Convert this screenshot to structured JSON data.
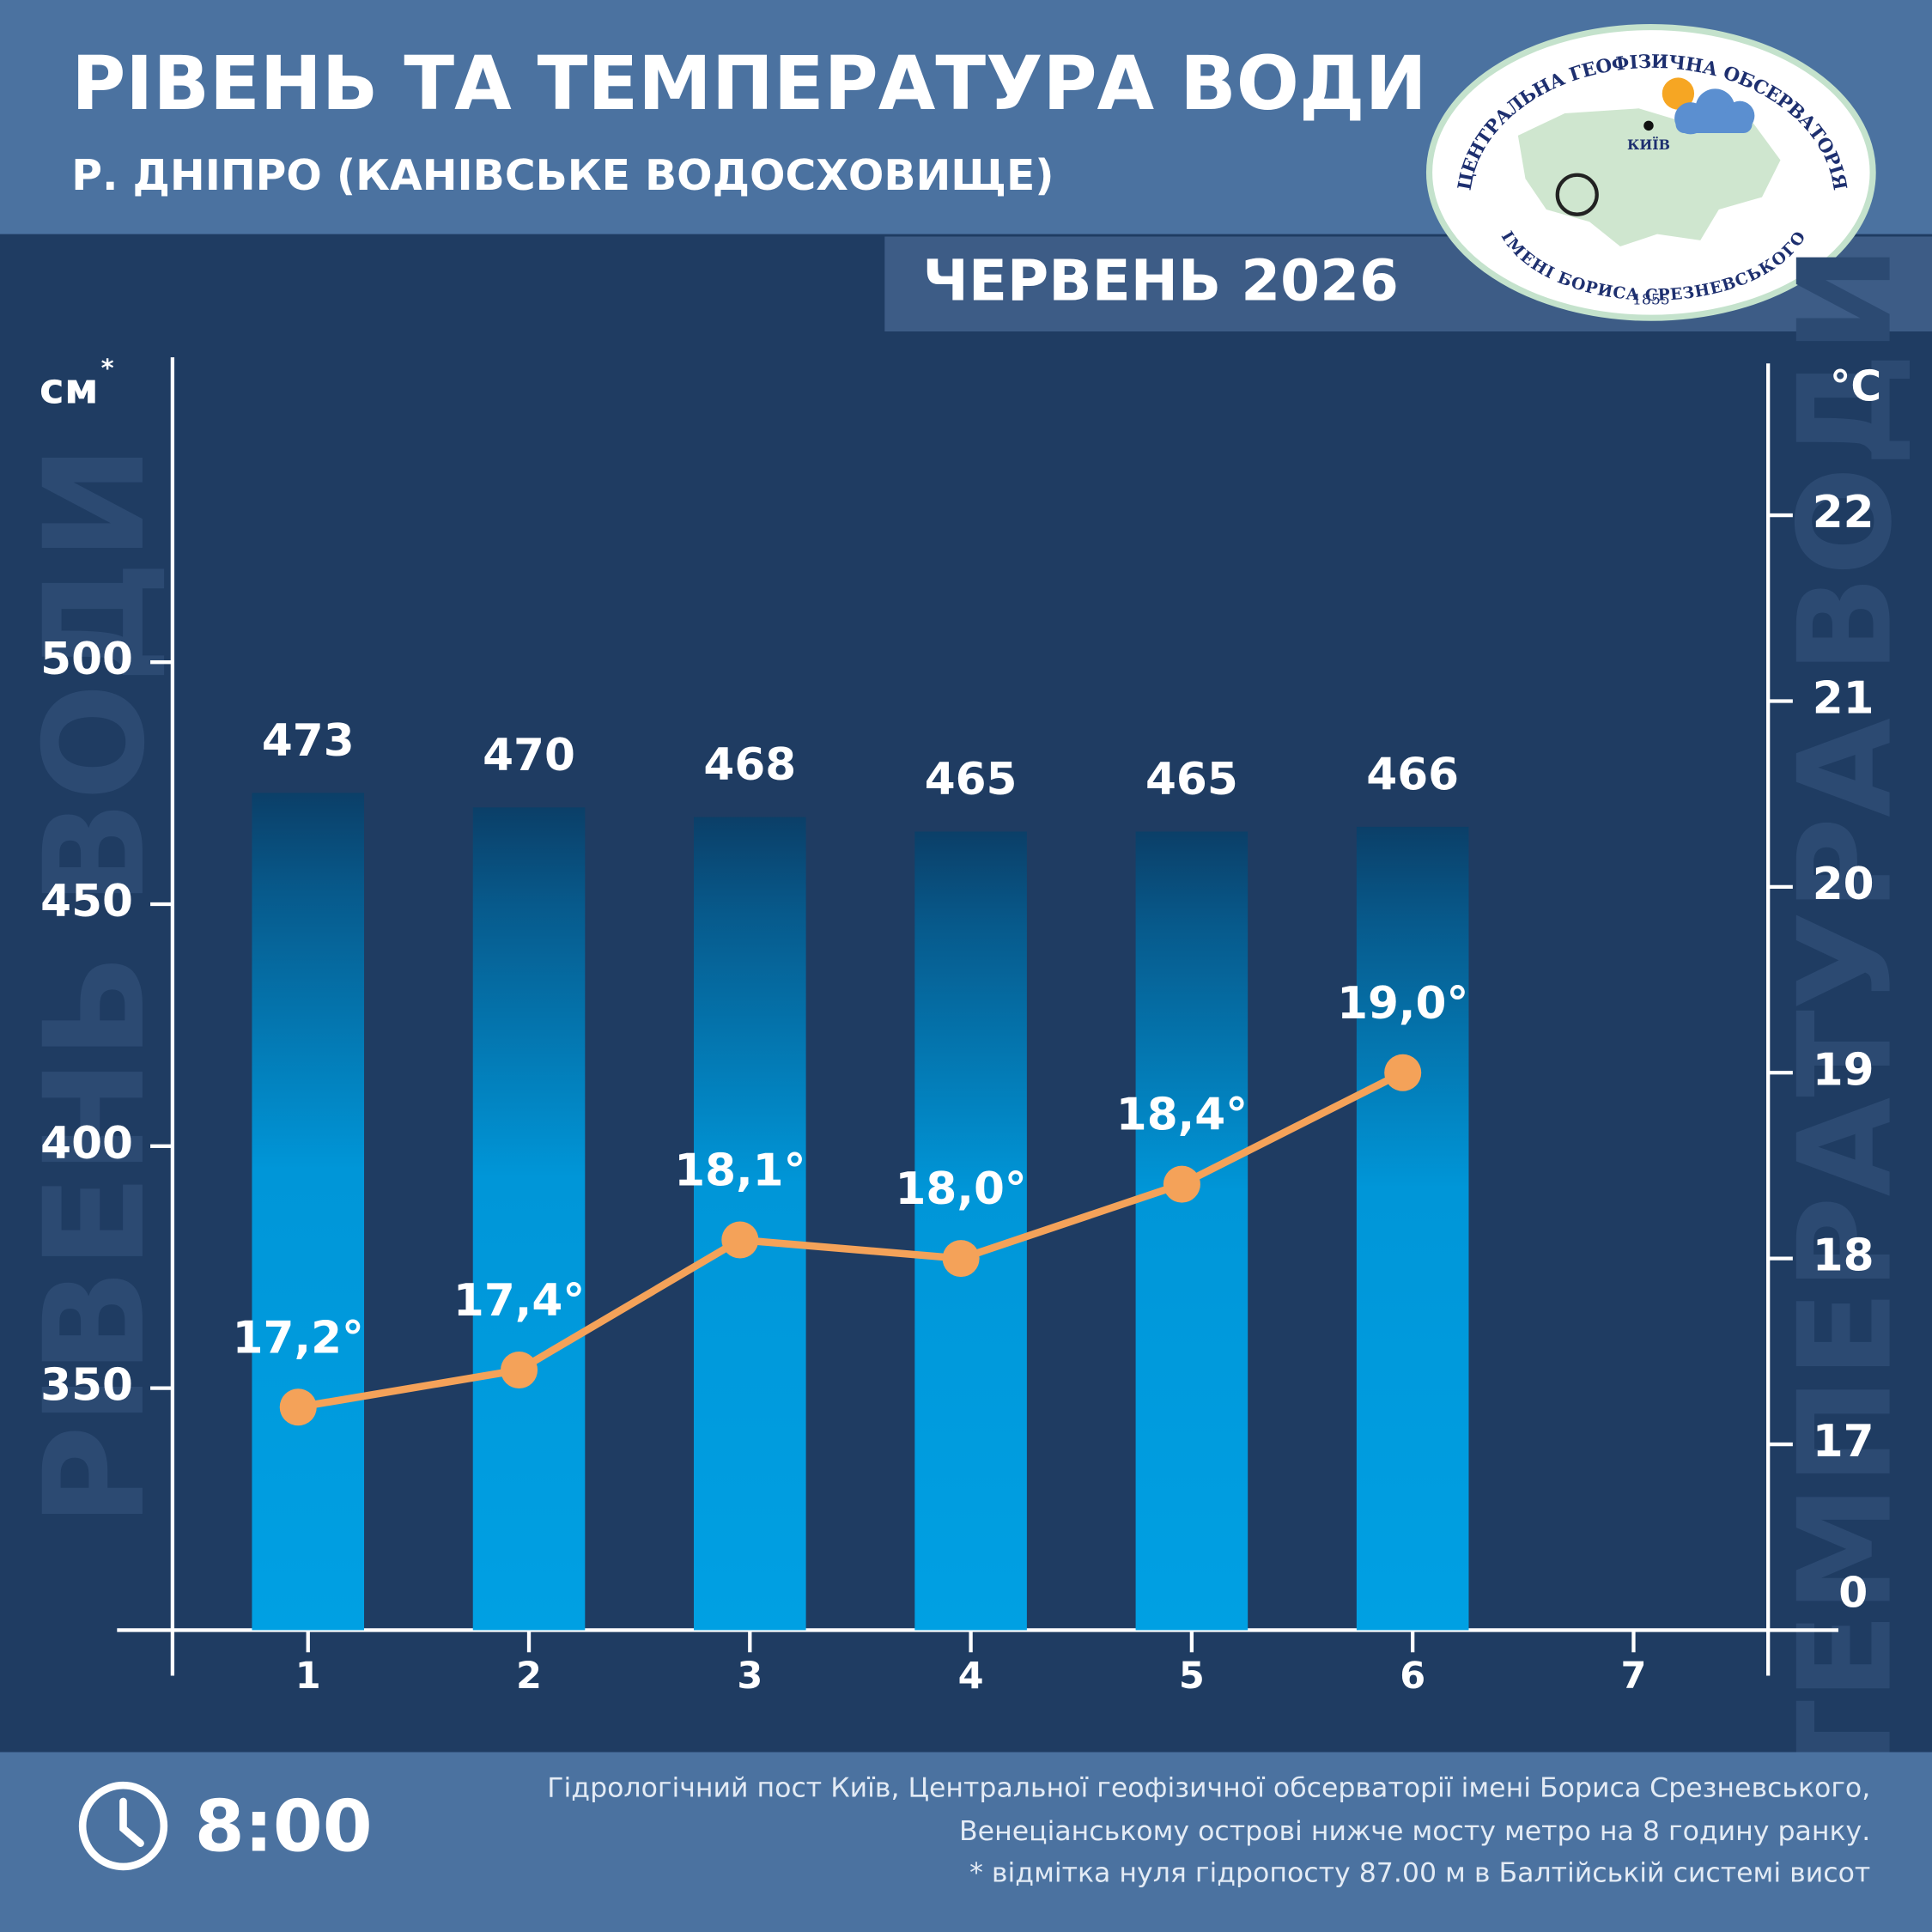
{
  "header": {
    "title": "РІВЕНЬ ТА ТЕМПЕРАТУРА ВОДИ",
    "subtitle": "Р. ДНІПРО (КАНІВСЬКЕ ВОДОСХОВИЩЕ)",
    "period": "ЧЕРВЕНЬ 2026"
  },
  "logo": {
    "top_text": "ЦЕНТРАЛЬНА ГЕОФІЗИЧНА ОБСЕРВАТОРІЯ",
    "bottom_text": "ІМЕНІ БОРИСА СРЕЗНЕВСЬКОГО",
    "year": "1855",
    "city": "КИЇВ"
  },
  "chart_data": {
    "type": "bar",
    "categories": [
      "1",
      "2",
      "3",
      "4",
      "5",
      "6",
      "7"
    ],
    "series": [
      {
        "name": "РІВЕНЬ ВОДИ",
        "type": "bar",
        "color": "#009fe3",
        "values": [
          473,
          470,
          468,
          465,
          465,
          466,
          null
        ]
      },
      {
        "name": "ТЕМПЕРАТУРА ВОДИ",
        "type": "line",
        "axis": "y2",
        "color": "#f4a259",
        "values": [
          17.2,
          17.4,
          18.1,
          18.0,
          18.4,
          19.0,
          null
        ],
        "value_labels": [
          "17,2°",
          "17,4°",
          "18,1°",
          "18,0°",
          "18,4°",
          "19,0°",
          null
        ]
      }
    ],
    "y_label": "см",
    "y_label_note": "*",
    "y2_label": "°C",
    "ylim": [
      300,
      563
    ],
    "yticks": [
      350,
      400,
      450,
      500
    ],
    "y2lim": [
      16,
      22.85
    ],
    "y2ticks": [
      17,
      18,
      19,
      20,
      21,
      22
    ],
    "y2_break_label": "0"
  },
  "footer": {
    "time": "8:00",
    "notes": [
      "Гідрологічний пост Київ, Центральної геофізичної обсерваторії імені Бориса Срезневського,",
      "Венеціанському острові нижче мосту метро  на 8 годину ранку.",
      "* відмітка нуля гідропосту 87.00 м в Балтійській системі висот"
    ]
  }
}
